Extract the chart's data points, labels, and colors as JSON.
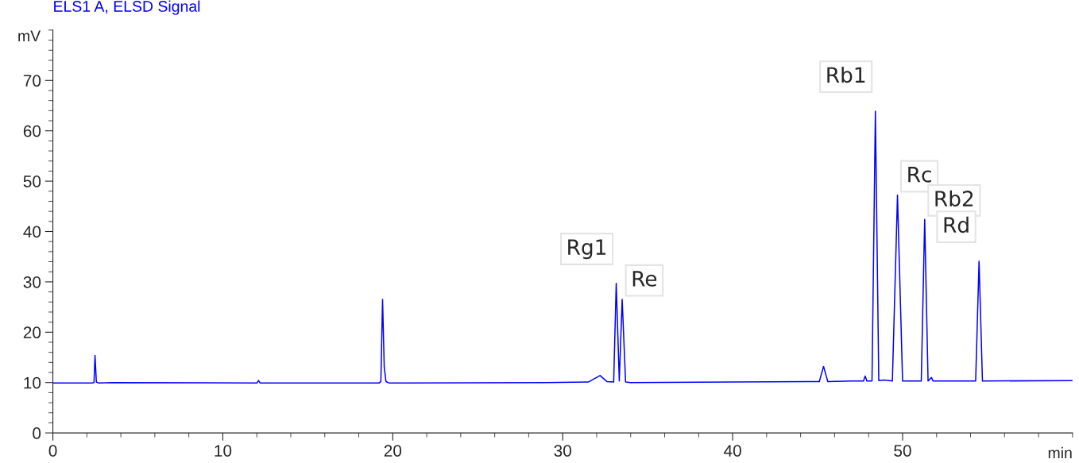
{
  "chart_data": {
    "type": "line",
    "title": "ELS1 A, ELSD Signal",
    "xlabel": "min",
    "ylabel": "mV",
    "x": [
      0,
      2.3,
      2.42,
      2.48,
      2.56,
      2.7,
      3.5,
      12.0,
      12.1,
      12.2,
      19.2,
      19.3,
      19.4,
      19.5,
      19.6,
      19.8,
      29,
      31.5,
      32.2,
      32.6,
      33.0,
      33.15,
      33.33,
      33.5,
      33.7,
      34,
      40,
      45.1,
      45.35,
      45.6,
      47,
      47.7,
      47.8,
      47.9,
      48.2,
      48.4,
      48.6,
      48.9,
      49.4,
      49.7,
      50.0,
      51.1,
      51.3,
      51.5,
      51.7,
      51.8,
      54.3,
      54.5,
      54.7,
      60
    ],
    "series": [
      {
        "color": "#0000ff",
        "values": [
          9.9,
          9.9,
          10.0,
          15.4,
          10.1,
          9.9,
          10.0,
          9.9,
          10.4,
          9.9,
          9.9,
          10.2,
          26.5,
          13,
          10.2,
          9.9,
          10.0,
          10.1,
          11.4,
          10.2,
          10.1,
          29.7,
          10.3,
          26.5,
          10.1,
          10.0,
          10.1,
          10.2,
          13.2,
          10.2,
          10.3,
          10.3,
          11.3,
          10.3,
          10.3,
          63.9,
          10.4,
          10.5,
          10.3,
          47.2,
          10.3,
          10.3,
          42.4,
          10.3,
          11.0,
          10.3,
          10.3,
          34.1,
          10.3,
          10.4
        ]
      }
    ],
    "xlim": [
      0,
      60
    ],
    "xticks": [
      0,
      10,
      20,
      30,
      40,
      50
    ],
    "ylim": [
      0,
      80
    ],
    "yticks": [
      0,
      10,
      20,
      30,
      40,
      50,
      60,
      70
    ],
    "grid": false,
    "legend": false,
    "marker": "none",
    "line_style": "solid",
    "annotations": [
      {
        "text": "Rg1",
        "x": 33.15,
        "y": 29.7
      },
      {
        "text": "Re",
        "x": 33.5,
        "y": 26.5
      },
      {
        "text": "Rb1",
        "x": 48.4,
        "y": 63.9
      },
      {
        "text": "Rc",
        "x": 49.7,
        "y": 47.2
      },
      {
        "text": "Rb2",
        "x": 51.3,
        "y": 42.4
      },
      {
        "text": "Rd",
        "x": 54.5,
        "y": 34.1
      }
    ]
  }
}
